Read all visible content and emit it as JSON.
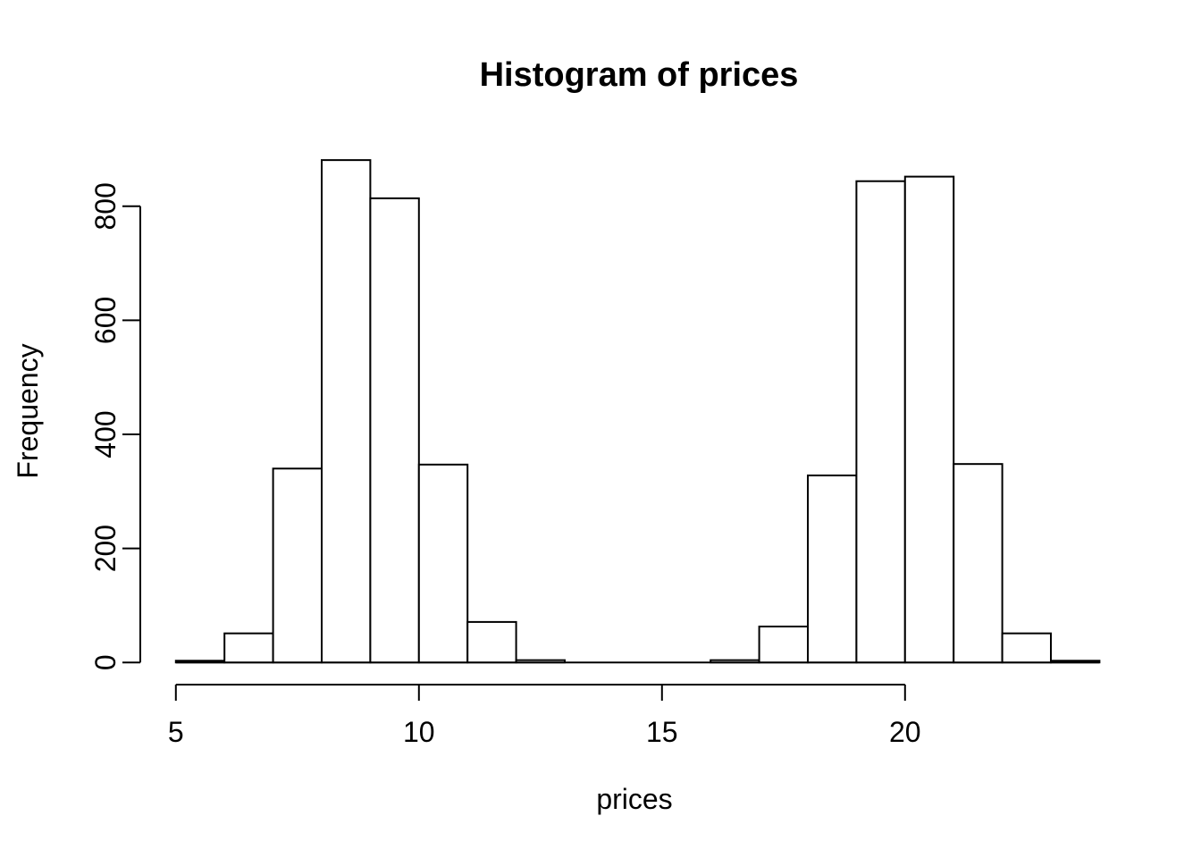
{
  "page": {
    "background_color": "#ffffff",
    "foreground_color": "#000000"
  },
  "chart_data": {
    "type": "bar",
    "chart_kind": "histogram",
    "title": "Histogram of prices",
    "xlabel": "prices",
    "ylabel": "Frequency",
    "bin_edges": [
      5,
      6,
      7,
      8,
      9,
      10,
      11,
      12,
      13,
      14,
      15,
      16,
      17,
      18,
      19,
      20,
      21,
      22,
      23,
      24
    ],
    "counts": [
      3,
      51,
      340,
      881,
      814,
      347,
      71,
      4,
      0,
      0,
      0,
      4,
      63,
      328,
      844,
      852,
      348,
      51,
      3
    ],
    "x_ticks": [
      5,
      10,
      15,
      20
    ],
    "y_ticks": [
      0,
      200,
      400,
      600,
      800
    ],
    "xlim": [
      5,
      24
    ],
    "ylim": [
      0,
      881
    ],
    "grid": false,
    "legend": "none",
    "bar_fill": "#ffffff",
    "bar_stroke": "#000000",
    "axis_color": "#000000",
    "text_color": "#000000"
  }
}
